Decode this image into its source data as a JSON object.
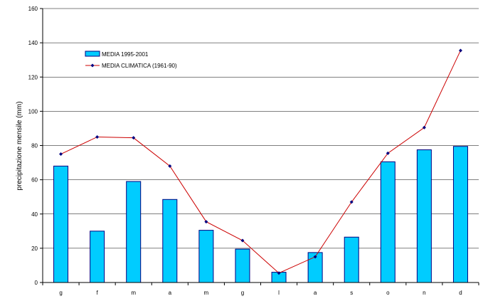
{
  "chart_data": {
    "type": "bar",
    "title": "",
    "xlabel": "",
    "ylabel": "precipitazione mensile (mm)",
    "ylim": [
      0,
      160
    ],
    "yticks": [
      0,
      20,
      40,
      60,
      80,
      100,
      120,
      140,
      160
    ],
    "grid": true,
    "legend_position": "top-left",
    "categories": [
      "g",
      "f",
      "m",
      "a",
      "m",
      "g",
      "l",
      "a",
      "s",
      "o",
      "n",
      "d"
    ],
    "series": [
      {
        "name": "MEDIA 1995-2001",
        "kind": "bar",
        "color": "#00CCFF",
        "values": [
          68,
          30,
          59,
          48.5,
          30.5,
          19.5,
          6,
          17.5,
          26.5,
          70.5,
          77.5,
          79.5
        ]
      },
      {
        "name": "MEDIA CLIMATICA (1961-90)",
        "kind": "line",
        "color": "#CC0000",
        "marker_color": "#000080",
        "values": [
          75,
          85,
          84.5,
          68,
          35.5,
          24.5,
          5.5,
          15,
          47,
          75.5,
          90.5,
          135.5
        ]
      }
    ]
  }
}
